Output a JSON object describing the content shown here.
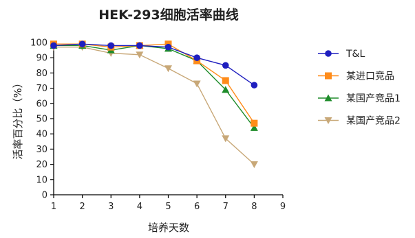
{
  "chart_data": {
    "type": "line",
    "title": "HEK-293细胞活率曲线",
    "xlabel": "培养天数",
    "ylabel": "活率百分比（%）",
    "xlim": [
      1,
      9
    ],
    "ylim": [
      0,
      100
    ],
    "x_ticks": [
      "1",
      "2",
      "3",
      "4",
      "5",
      "6",
      "7",
      "8",
      "9"
    ],
    "y_ticks": [
      "0",
      "10",
      "20",
      "30",
      "40",
      "50",
      "60",
      "70",
      "80",
      "90",
      "100"
    ],
    "grid": false,
    "legend_position": "right",
    "x": [
      1,
      2,
      3,
      4,
      5,
      6,
      7,
      8
    ],
    "series": [
      {
        "name": "T&L",
        "color": "#1f1fbf",
        "marker": "circle",
        "values": [
          98,
          99,
          98,
          98,
          97,
          90,
          85,
          72
        ]
      },
      {
        "name": "某进口竞品",
        "color": "#ff8c1a",
        "marker": "square",
        "values": [
          99,
          99,
          97,
          98,
          99,
          88,
          75,
          47
        ]
      },
      {
        "name": "某国产竞品1",
        "color": "#1e8c2a",
        "marker": "triangle-up",
        "values": [
          98,
          98,
          95,
          98,
          96,
          88,
          69,
          44
        ]
      },
      {
        "name": "某国产竞品2",
        "color": "#c8a878",
        "marker": "triangle-down",
        "values": [
          97,
          97,
          93,
          92,
          83,
          73,
          37,
          20
        ]
      }
    ]
  }
}
